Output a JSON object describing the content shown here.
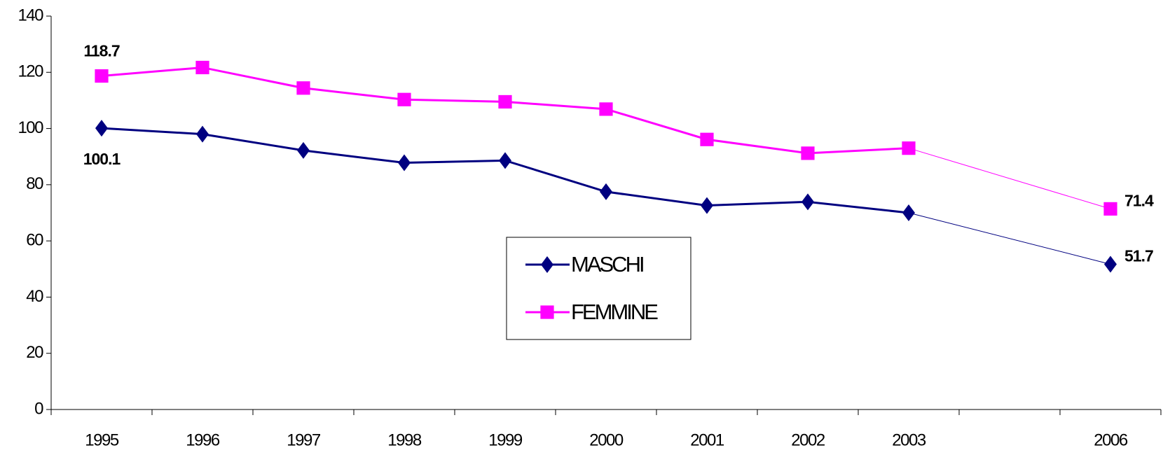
{
  "chart_data": {
    "type": "line",
    "categories": [
      "1995",
      "1996",
      "1997",
      "1998",
      "1999",
      "2000",
      "2001",
      "2002",
      "2003",
      null,
      "2006"
    ],
    "series": [
      {
        "name": "MASCHI",
        "color": "#000080",
        "marker": "diamond",
        "labeled": [
          0,
          10
        ],
        "values": [
          100.1,
          98,
          92.2,
          87.8,
          88.6,
          77.5,
          72.6,
          73.9,
          70,
          null,
          51.7
        ]
      },
      {
        "name": "FEMMINE",
        "color": "#ff00ff",
        "marker": "square",
        "labeled": [
          0,
          10
        ],
        "values": [
          118.7,
          121.7,
          114.4,
          110.3,
          109.5,
          106.9,
          96.1,
          91.2,
          93,
          null,
          71.4
        ]
      }
    ],
    "ylim": [
      0,
      140
    ],
    "yticks": [
      0,
      20,
      40,
      60,
      80,
      100,
      120,
      140
    ],
    "grid": false,
    "legend": "center"
  }
}
